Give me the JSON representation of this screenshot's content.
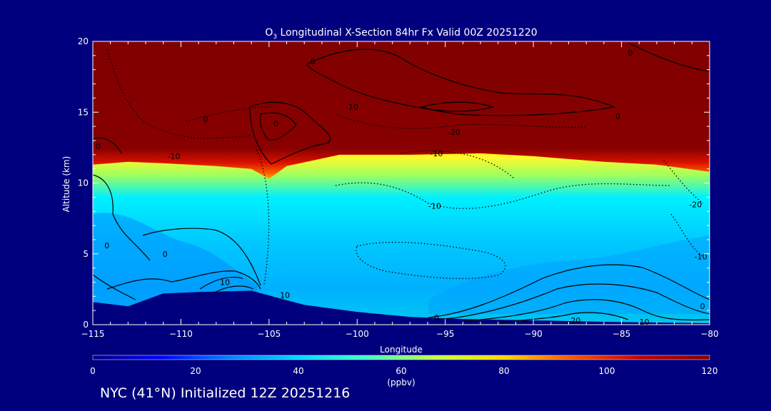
{
  "chart_data": {
    "type": "heatmap",
    "title_prefix": "O",
    "title_sub": "3",
    "title_rest": " Longitudinal X-Section 84hr  Fx Valid 00Z 20251220",
    "xlabel": "Longitude",
    "ylabel": "Altitude (km)",
    "xlim": [
      -115,
      -80
    ],
    "ylim": [
      0,
      20
    ],
    "x_ticks": [
      -115,
      -110,
      -105,
      -100,
      -95,
      -90,
      -85,
      -80
    ],
    "x_tick_labels": [
      "−115",
      "−110",
      "−105",
      "−100",
      "−95",
      "−90",
      "−85",
      "−80"
    ],
    "y_ticks": [
      0,
      5,
      10,
      15,
      20
    ],
    "y_tick_labels": [
      "0",
      "5",
      "10",
      "15",
      "20"
    ],
    "colorbar": {
      "label": "(ppbv)",
      "range": [
        0,
        120
      ],
      "ticks": [
        0,
        20,
        40,
        60,
        80,
        100,
        120
      ],
      "tick_labels": [
        "0",
        "20",
        "40",
        "60",
        "80",
        "100",
        "120"
      ],
      "colors": [
        "#00007f",
        "#0000ff",
        "#0080ff",
        "#00d7ff",
        "#40ffc0",
        "#c0ff40",
        "#ffd700",
        "#ff5000",
        "#c00000",
        "#800000"
      ]
    },
    "terrain": [
      [
        -115,
        1.6
      ],
      [
        -113,
        1.3
      ],
      [
        -111,
        2.2
      ],
      [
        -109,
        2.3
      ],
      [
        -106,
        2.4
      ],
      [
        -103,
        1.4
      ],
      [
        -100,
        0.9
      ],
      [
        -97,
        0.55
      ],
      [
        -94,
        0.4
      ],
      [
        -90,
        0.3
      ],
      [
        -86,
        0.2
      ],
      [
        -83,
        0.15
      ],
      [
        -80,
        0.1
      ]
    ],
    "tropopause_km": [
      [
        -115,
        11.9
      ],
      [
        -113,
        12.1
      ],
      [
        -111,
        12.0
      ],
      [
        -108,
        11.8
      ],
      [
        -106,
        11.6
      ],
      [
        -105,
        10.9
      ],
      [
        -104,
        11.8
      ],
      [
        -101,
        12.6
      ],
      [
        -97,
        12.6
      ],
      [
        -93,
        12.7
      ],
      [
        -90,
        12.5
      ],
      [
        -86,
        12.1
      ],
      [
        -83,
        11.9
      ],
      [
        -80,
        11.4
      ]
    ],
    "contour_labels": [
      {
        "text": "0",
        "lon": -84.5,
        "alt": 19.2
      },
      {
        "text": "0",
        "lon": -102.5,
        "alt": 18.6
      },
      {
        "text": "-10",
        "lon": -100.3,
        "alt": 15.4
      },
      {
        "text": "0",
        "lon": -108.6,
        "alt": 14.5
      },
      {
        "text": "0",
        "lon": -104.6,
        "alt": 14.2
      },
      {
        "text": "-20",
        "lon": -94.5,
        "alt": 13.6
      },
      {
        "text": "0",
        "lon": -85.2,
        "alt": 14.7
      },
      {
        "text": "-10",
        "lon": -110.4,
        "alt": 11.9
      },
      {
        "text": "-10",
        "lon": -95.5,
        "alt": 12.1
      },
      {
        "text": "0",
        "lon": -114.7,
        "alt": 12.6
      },
      {
        "text": "-10",
        "lon": -95.6,
        "alt": 8.4
      },
      {
        "text": "-20",
        "lon": -80.8,
        "alt": 8.5
      },
      {
        "text": "0",
        "lon": -114.2,
        "alt": 5.6
      },
      {
        "text": "0",
        "lon": -110.9,
        "alt": 5.0
      },
      {
        "text": "-10",
        "lon": -80.5,
        "alt": 4.8
      },
      {
        "text": "10",
        "lon": -104.1,
        "alt": 2.1
      },
      {
        "text": "10",
        "lon": -107.5,
        "alt": 3.0
      },
      {
        "text": "0",
        "lon": -95.5,
        "alt": 0.5
      },
      {
        "text": "20",
        "lon": -87.6,
        "alt": 0.3
      },
      {
        "text": "10",
        "lon": -83.7,
        "alt": 0.2
      },
      {
        "text": "0",
        "lon": -80.4,
        "alt": 1.3
      }
    ]
  },
  "footer": {
    "caption": "NYC (41°N) Initialized 12Z 20251216"
  }
}
